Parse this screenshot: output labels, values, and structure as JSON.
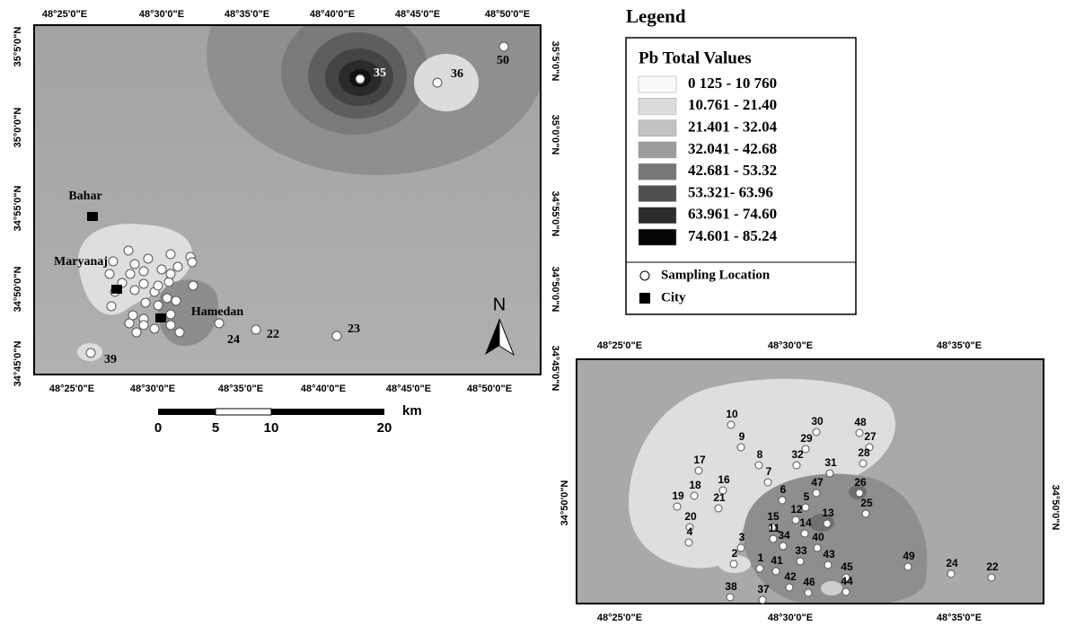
{
  "main_map": {
    "top_labels": [
      "48°25'0\"E",
      "48°30'0\"E",
      "48°35'0\"E",
      "48°40'0\"E",
      "48°45'0\"E",
      "48°50'0\"E"
    ],
    "bottom_labels": [
      "48°25'0\"E",
      "48°30'0\"E",
      "48°35'0\"E",
      "48°40'0\"E",
      "48°45'0\"E",
      "48°50'0\"E"
    ],
    "left_labels": [
      "35°5'0\"N",
      "35°0'0\"N",
      "34°55'0\"N",
      "34°50'0\"N",
      "34°45'0\"N"
    ],
    "right_labels": [
      "35°5'0\"N",
      "35°0'0\"N",
      "34°55'0\"N",
      "34°50'0\"N",
      "34°45'0\"N"
    ],
    "points": [
      "35",
      "36",
      "50",
      "39",
      "24",
      "22",
      "23"
    ],
    "cities": [
      "Bahar",
      "Maryanaj",
      "Hamedan"
    ],
    "north": "N"
  },
  "scale_bar": {
    "labels": [
      "0",
      "5",
      "10",
      "20"
    ],
    "unit": "km"
  },
  "legend": {
    "title": "Legend",
    "subtitle": "Pb Total Values",
    "classes": [
      "0 125 - 10 760",
      "10.761 - 21.40",
      "21.401 - 32.04",
      "32.041 - 42.68",
      "42.681 - 53.32",
      "53.321- 63.96",
      "63.961 - 74.60",
      "74.601 - 85.24"
    ],
    "symbols": [
      "Sampling Location",
      "City"
    ]
  },
  "inset_map": {
    "top_labels": [
      "48°25'0\"E",
      "48°30'0\"E",
      "48°35'0\"E"
    ],
    "bottom_labels": [
      "48°25'0\"E",
      "48°30'0\"E",
      "48°35'0\"E"
    ],
    "left_labels": [
      "34°50'0\"N"
    ],
    "right_labels": [
      "34°50'0\"N"
    ],
    "points": [
      "10",
      "30",
      "48",
      "9",
      "29",
      "27",
      "8",
      "32",
      "28",
      "17",
      "31",
      "7",
      "16",
      "47",
      "26",
      "18",
      "6",
      "5",
      "19",
      "21",
      "25",
      "12",
      "15",
      "13",
      "20",
      "11",
      "14",
      "34",
      "40",
      "4",
      "3",
      "33",
      "43",
      "2",
      "1",
      "41",
      "45",
      "49",
      "24",
      "22",
      "42",
      "46",
      "44",
      "38",
      "37"
    ]
  }
}
